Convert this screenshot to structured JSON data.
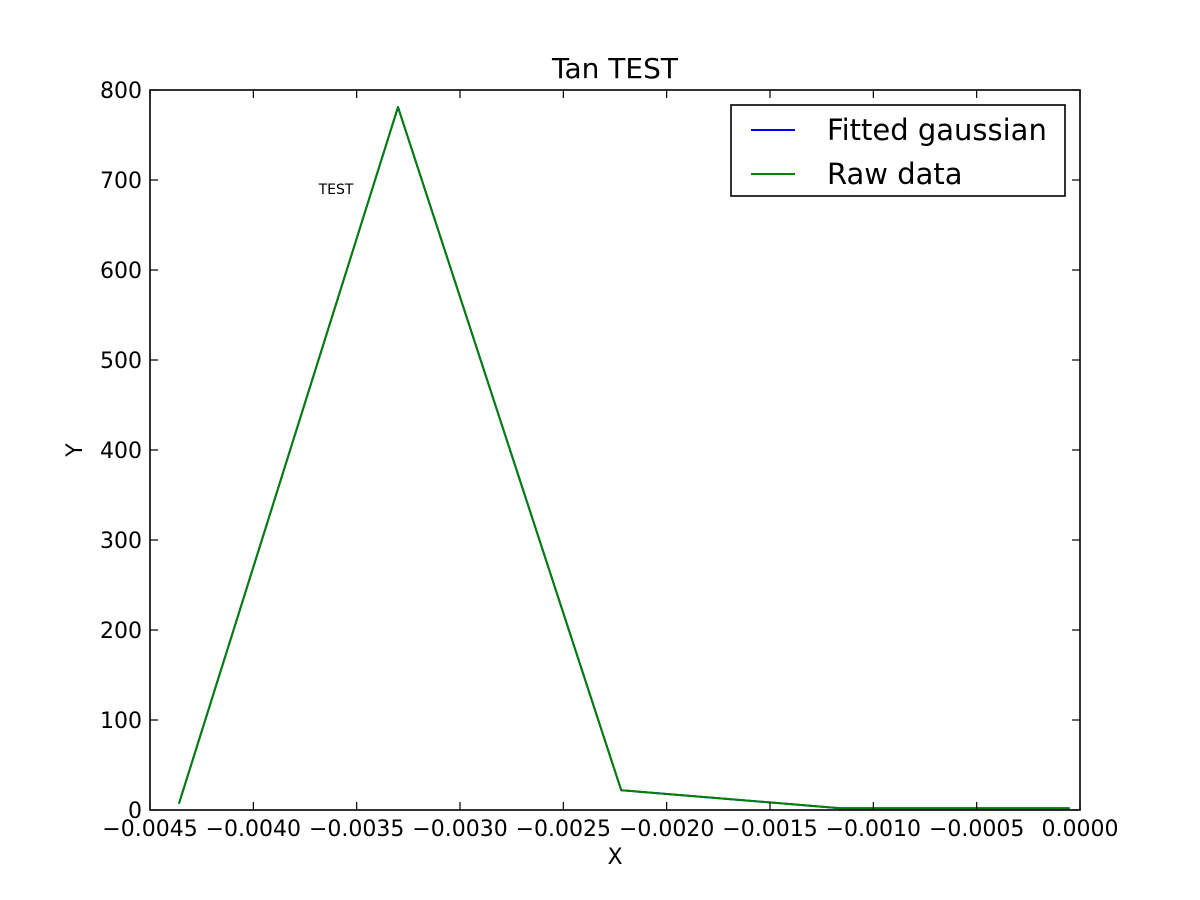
{
  "chart_data": {
    "type": "line",
    "title": "Tan TEST",
    "xlabel": "X",
    "ylabel": "Y",
    "xlim": [
      -0.0045,
      0.0
    ],
    "ylim": [
      0,
      800
    ],
    "x_ticks": [
      -0.0045,
      -0.004,
      -0.0035,
      -0.003,
      -0.0025,
      -0.002,
      -0.0015,
      -0.001,
      -0.0005,
      0.0
    ],
    "x_tick_labels": [
      "−0.0045",
      "−0.0040",
      "−0.0035",
      "−0.0030",
      "−0.0025",
      "−0.0020",
      "−0.0015",
      "−0.0010",
      "−0.0005",
      "0.0000"
    ],
    "y_ticks": [
      0,
      100,
      200,
      300,
      400,
      500,
      600,
      700,
      800
    ],
    "y_tick_labels": [
      "0",
      "100",
      "200",
      "300",
      "400",
      "500",
      "600",
      "700",
      "800"
    ],
    "grid": false,
    "legend_position": "top-right",
    "series": [
      {
        "name": "Fitted gaussian",
        "color": "#0000ff",
        "x": [
          -0.00436,
          -0.0033,
          -0.00222,
          -0.00116,
          -5e-05
        ],
        "y": [
          7,
          781,
          22,
          2,
          2
        ]
      },
      {
        "name": "Raw data",
        "color": "#008000",
        "x": [
          -0.00436,
          -0.0033,
          -0.00222,
          -0.00116,
          -5e-05
        ],
        "y": [
          7,
          781,
          22,
          2,
          2
        ]
      }
    ],
    "annotations": [
      {
        "text": "TEST",
        "x": -0.0036,
        "y": 690
      }
    ]
  }
}
